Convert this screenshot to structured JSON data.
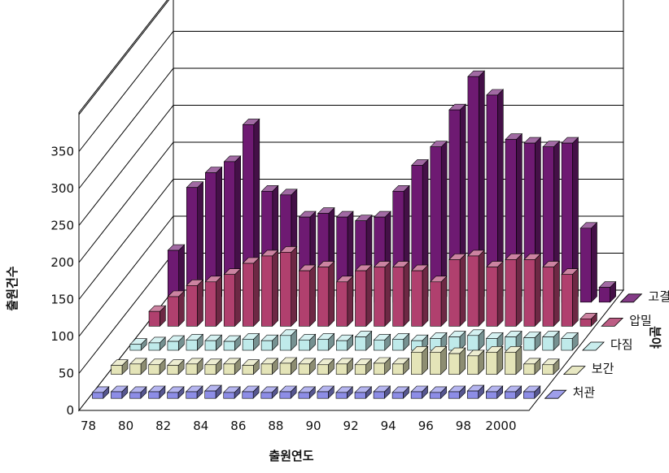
{
  "chart_data": {
    "type": "bar",
    "variant": "3d-grouped-depth",
    "xlabel": "출원연도",
    "ylabel": "출원건수",
    "depth_axis_label": "분야",
    "ylim": [
      0,
      350
    ],
    "y_ticks": [
      "0",
      "50",
      "100",
      "150",
      "200",
      "250",
      "300",
      "350"
    ],
    "x_tick_labels": [
      "78",
      "80",
      "82",
      "84",
      "86",
      "88",
      "90",
      "92",
      "94",
      "96",
      "98",
      "2000"
    ],
    "categories": [
      "78",
      "79",
      "80",
      "81",
      "82",
      "83",
      "84",
      "85",
      "86",
      "87",
      "88",
      "89",
      "90",
      "91",
      "92",
      "93",
      "94",
      "95",
      "96",
      "97",
      "98",
      "99",
      "2000",
      "2001"
    ],
    "grid": true,
    "series": [
      {
        "name": "처관",
        "color": "#8d8de6",
        "values": [
          8,
          9,
          8,
          9,
          8,
          9,
          10,
          8,
          9,
          8,
          9,
          8,
          9,
          8,
          8,
          9,
          8,
          9,
          8,
          9,
          10,
          9,
          9,
          9
        ]
      },
      {
        "name": "보간",
        "color": "#e4e4b8",
        "values": [
          12,
          14,
          13,
          12,
          14,
          13,
          14,
          12,
          14,
          15,
          14,
          13,
          14,
          13,
          15,
          14,
          30,
          30,
          28,
          25,
          30,
          30,
          14,
          13
        ]
      },
      {
        "name": "다짐",
        "color": "#bfeaea",
        "values": [
          8,
          10,
          12,
          14,
          13,
          12,
          15,
          13,
          20,
          14,
          15,
          13,
          18,
          14,
          15,
          13,
          16,
          18,
          20,
          16,
          18,
          17,
          18,
          16
        ]
      },
      {
        "name": "압밀",
        "color": "#b0406e",
        "values": [
          20,
          40,
          55,
          60,
          70,
          85,
          95,
          100,
          75,
          80,
          60,
          75,
          80,
          80,
          75,
          60,
          90,
          95,
          80,
          90,
          90,
          80,
          70,
          10
        ]
      },
      {
        "name": "고결",
        "color": "#6e1a72",
        "values": [
          70,
          155,
          175,
          190,
          240,
          150,
          145,
          115,
          120,
          115,
          110,
          115,
          150,
          185,
          210,
          260,
          305,
          280,
          220,
          215,
          210,
          215,
          100,
          20
        ]
      }
    ]
  }
}
